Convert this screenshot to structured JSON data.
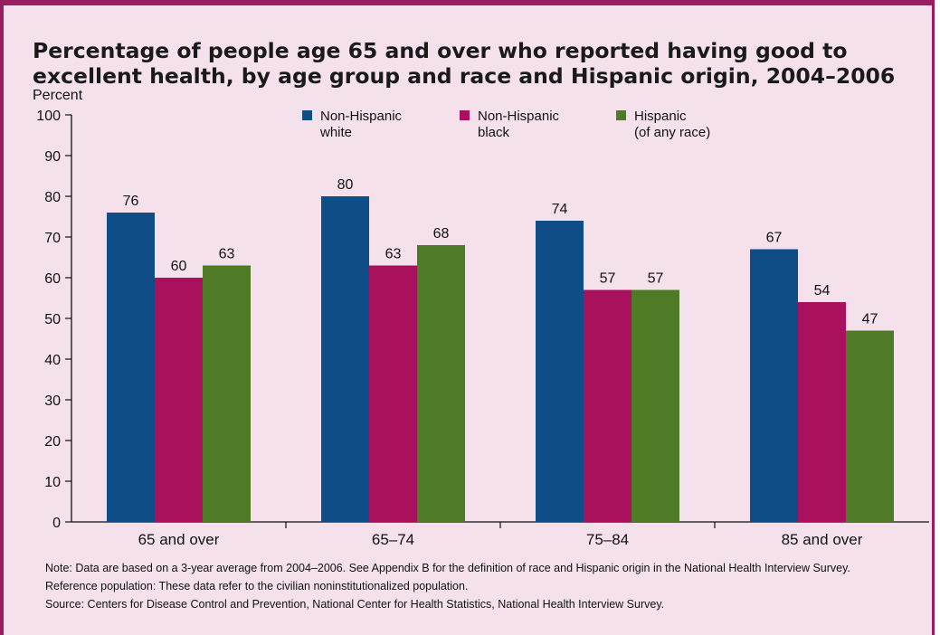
{
  "chart_data": {
    "type": "bar",
    "title": "Percentage of people age 65 and over who reported having good to excellent health, by age group and race and Hispanic origin, 2004–2006",
    "ylabel": "Percent",
    "xlabel": "",
    "ylim": [
      0,
      100
    ],
    "yticks": [
      0,
      10,
      20,
      30,
      40,
      50,
      60,
      70,
      80,
      90,
      100
    ],
    "grid": false,
    "legend_position": "top",
    "categories": [
      "65 and over",
      "65–74",
      "75–84",
      "85 and over"
    ],
    "series": [
      {
        "name": "Non-Hispanic white",
        "legend_lines": [
          "Non-Hispanic",
          "white"
        ],
        "color": "#0f4d86",
        "values": [
          76,
          80,
          74,
          67
        ]
      },
      {
        "name": "Non-Hispanic black",
        "legend_lines": [
          "Non-Hispanic",
          "black"
        ],
        "color": "#a9105d",
        "values": [
          60,
          63,
          57,
          54
        ]
      },
      {
        "name": "Hispanic (of any race)",
        "legend_lines": [
          "Hispanic",
          "(of any race)"
        ],
        "color": "#4f7b26",
        "values": [
          63,
          68,
          57,
          47
        ]
      }
    ]
  },
  "notes": {
    "note": "Note: Data are based on a 3-year average from 2004–2006. See Appendix B for the definition of race and Hispanic origin in the National Health Interview Survey.",
    "reference": "Reference population: These data refer to the civilian noninstitutionalized population.",
    "source": "Source: Centers for Disease Control and Prevention, National Center for Health Statistics, National Health Interview Survey."
  }
}
